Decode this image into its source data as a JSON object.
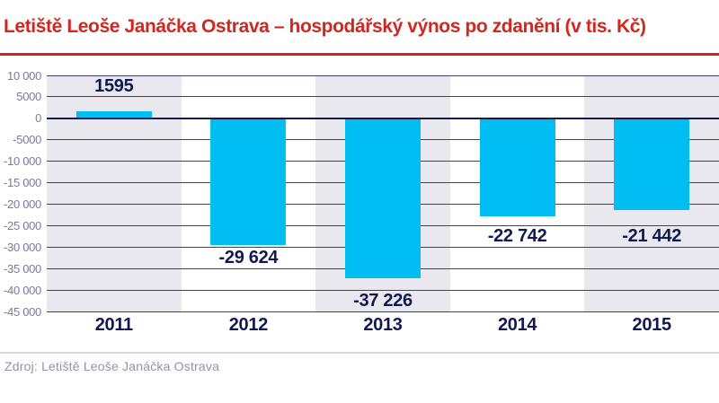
{
  "header": {
    "title": "Letiště Leoše Janáčka Ostrava – hospodářský výnos po zdanění (v tis. Kč)"
  },
  "footer": {
    "source": "Zdroj: Letiště Leoše Janáčka Ostrava"
  },
  "chart_data": {
    "type": "bar",
    "title": "Letiště Leoše Janáčka Ostrava – hospodářský výnos po zdanění (v tis. Kč)",
    "categories": [
      "2011",
      "2012",
      "2013",
      "2014",
      "2015"
    ],
    "values": [
      1595,
      -29624,
      -37226,
      -22742,
      -21442
    ],
    "value_labels": [
      "1595",
      "-29 624",
      "-37 226",
      "-22 742",
      "-21 442"
    ],
    "xlabel": "",
    "ylabel": "",
    "ylim": [
      -45000,
      10000
    ],
    "y_tick_step": 5000,
    "y_tick_labels": [
      "10 000",
      "5000",
      "0",
      "-5000",
      "-10 000",
      "-15 000",
      "-20 000",
      "-25 000",
      "-30 000",
      "-35 000",
      "-40 000",
      "-45 000"
    ],
    "grid": "horizontal-only",
    "legend": "none",
    "plot_bands": "alternating vertical category stripes, odd columns shaded",
    "colors": {
      "bar": "#00BEF2",
      "band_shaded": "#E8E8EE",
      "band_plain": "#FFFFFF",
      "gridline": "#3A406F",
      "zero_line": "#12194F",
      "value_label": "#12194F",
      "category_label": "#12194F",
      "tick_label": "#767CA0",
      "title": "#D2261E",
      "title_rule": "#C8281E",
      "source_text": "#8F93AA",
      "source_rule": "#D8D8DF"
    }
  }
}
